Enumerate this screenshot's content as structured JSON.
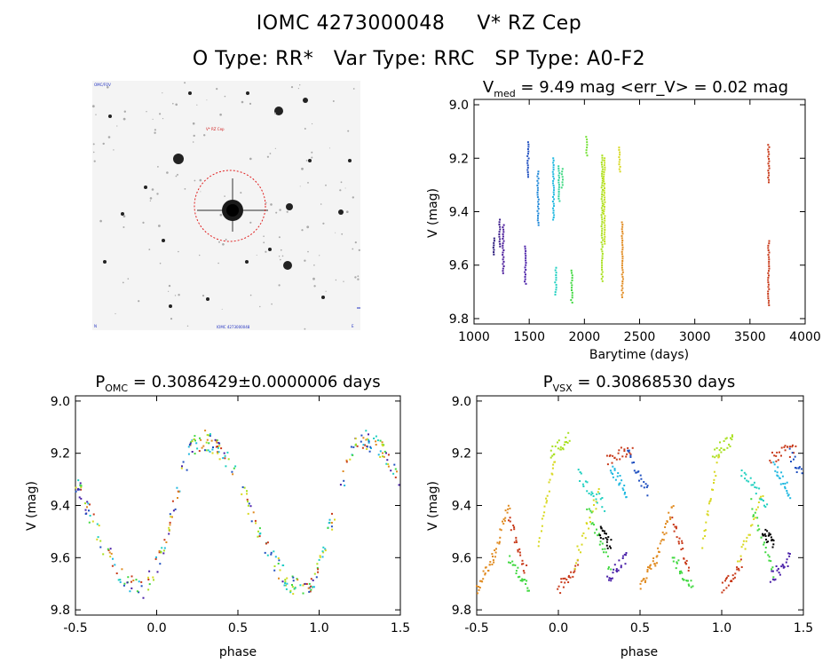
{
  "title_line1": {
    "id": "IOMC 4273000048",
    "name": "V* RZ Cep"
  },
  "title_line2": {
    "otype": "O Type: RR*",
    "vartype": "Var Type: RRC",
    "sptype": "SP Type: A0-F2"
  },
  "sky_image": {
    "label_top_left": "OMC/FOV",
    "label_target": "V* RZ Cep",
    "label_bottom_center": "IOMC 4273000048",
    "label_bottom_left": "N",
    "label_bottom_right": "E",
    "circle_color": "#e02020"
  },
  "chart_data": [
    {
      "type": "scatter",
      "id": "lightcurve",
      "title_main": "V",
      "title_sub": "med",
      "title_rest": " = 9.49 mag <err_V> = 0.02 mag",
      "xlabel": "Barytime (days)",
      "ylabel": "V (mag)",
      "xlim": [
        1000,
        4000
      ],
      "ylim": [
        9.82,
        8.98
      ],
      "y_inverted": true,
      "xticks": [
        1000,
        1500,
        2000,
        2500,
        3000,
        3500,
        4000
      ],
      "yticks": [
        9.0,
        9.2,
        9.4,
        9.6,
        9.8
      ],
      "clusters": [
        {
          "x": 1180,
          "ymin": 9.5,
          "ymax": 9.56,
          "color": "#2a1a7a"
        },
        {
          "x": 1230,
          "ymin": 9.43,
          "ymax": 9.53,
          "color": "#3a1a8a"
        },
        {
          "x": 1265,
          "ymin": 9.45,
          "ymax": 9.63,
          "color": "#4a1a9a"
        },
        {
          "x": 1465,
          "ymin": 9.53,
          "ymax": 9.67,
          "color": "#4a20a8"
        },
        {
          "x": 1490,
          "ymin": 9.14,
          "ymax": 9.27,
          "color": "#2050c0"
        },
        {
          "x": 1580,
          "ymin": 9.25,
          "ymax": 9.45,
          "color": "#2088d8"
        },
        {
          "x": 1720,
          "ymin": 9.2,
          "ymax": 9.43,
          "color": "#20b8e0"
        },
        {
          "x": 1740,
          "ymin": 9.61,
          "ymax": 9.71,
          "color": "#20d0c0"
        },
        {
          "x": 1770,
          "ymin": 9.23,
          "ymax": 9.36,
          "color": "#30d0a0"
        },
        {
          "x": 1800,
          "ymin": 9.24,
          "ymax": 9.31,
          "color": "#40d880"
        },
        {
          "x": 1885,
          "ymin": 9.62,
          "ymax": 9.74,
          "color": "#40d840"
        },
        {
          "x": 2020,
          "ymin": 9.12,
          "ymax": 9.19,
          "color": "#70e030"
        },
        {
          "x": 2160,
          "ymin": 9.19,
          "ymax": 9.66,
          "color": "#a8e020"
        },
        {
          "x": 2180,
          "ymin": 9.2,
          "ymax": 9.52,
          "color": "#c0e020"
        },
        {
          "x": 2320,
          "ymin": 9.16,
          "ymax": 9.25,
          "color": "#d8d820"
        },
        {
          "x": 2345,
          "ymin": 9.44,
          "ymax": 9.72,
          "color": "#e08a20"
        },
        {
          "x": 3670,
          "ymin": 9.15,
          "ymax": 9.29,
          "color": "#c83a1a"
        },
        {
          "x": 3670,
          "ymin": 9.51,
          "ymax": 9.75,
          "color": "#c83a1a"
        }
      ]
    },
    {
      "type": "scatter",
      "id": "phase_omc",
      "title_main": "P",
      "title_sub": "OMC",
      "title_rest": " = 0.3086429±0.0000006 days",
      "xlabel": "phase",
      "ylabel": "V (mag)",
      "xlim": [
        -0.5,
        1.5
      ],
      "ylim": [
        9.82,
        8.98
      ],
      "y_inverted": true,
      "xticks": [
        -0.5,
        0.0,
        0.5,
        1.0,
        1.5
      ],
      "yticks": [
        9.0,
        9.2,
        9.4,
        9.6,
        9.8
      ],
      "tick_labels_x": [
        "-0.5",
        "0.0",
        "0.5",
        "1.0",
        "1.5"
      ],
      "tick_labels_y": [
        "9.0",
        "9.2",
        "9.4",
        "9.6",
        "9.8"
      ],
      "curve": {
        "kind": "rrc",
        "max_phase": 0.28,
        "min_phase": -0.1,
        "bright_mag": 9.15,
        "faint_mag": 9.72,
        "scatter": 0.04,
        "colors": [
          "#c83a1a",
          "#e08a20",
          "#d8d820",
          "#a8e020",
          "#40d840",
          "#20d0c0",
          "#20b8e0",
          "#2050c0",
          "#4a20a8"
        ]
      }
    },
    {
      "type": "scatter",
      "id": "phase_vsx",
      "title_main": "P",
      "title_sub": "VSX",
      "title_rest": " = 0.30868530 days",
      "xlabel": "phase",
      "ylabel": "V (mag)",
      "xlim": [
        -0.5,
        1.5
      ],
      "ylim": [
        9.82,
        8.98
      ],
      "y_inverted": true,
      "xticks": [
        -0.5,
        0.0,
        0.5,
        1.0,
        1.5
      ],
      "yticks": [
        9.0,
        9.2,
        9.4,
        9.6,
        9.8
      ],
      "tick_labels_x": [
        "-0.5",
        "0.0",
        "0.5",
        "1.0",
        "1.5"
      ],
      "tick_labels_y": [
        "9.0",
        "9.2",
        "9.4",
        "9.6",
        "9.8"
      ],
      "curve": {
        "kind": "smeared",
        "segments": [
          {
            "p0": -0.5,
            "p1": -0.4,
            "m0": 9.72,
            "m1": 9.6,
            "color": "#e08a20"
          },
          {
            "p0": -0.4,
            "p1": -0.3,
            "m0": 9.6,
            "m1": 9.4,
            "color": "#e08a20"
          },
          {
            "p0": -0.3,
            "p1": -0.2,
            "m0": 9.45,
            "m1": 9.65,
            "color": "#c83a1a"
          },
          {
            "p0": -0.3,
            "p1": -0.18,
            "m0": 9.6,
            "m1": 9.72,
            "color": "#40d840"
          },
          {
            "p0": -0.12,
            "p1": -0.02,
            "m0": 9.55,
            "m1": 9.22,
            "color": "#d8d820"
          },
          {
            "p0": -0.05,
            "p1": 0.07,
            "m0": 9.2,
            "m1": 9.14,
            "color": "#a8e020"
          },
          {
            "p0": 0.0,
            "p1": 0.12,
            "m0": 9.72,
            "m1": 9.62,
            "color": "#c83a1a"
          },
          {
            "p0": 0.1,
            "p1": 0.25,
            "m0": 9.62,
            "m1": 9.35,
            "color": "#d8d820"
          },
          {
            "p0": 0.12,
            "p1": 0.28,
            "m0": 9.28,
            "m1": 9.4,
            "color": "#20d0c0"
          },
          {
            "p0": 0.18,
            "p1": 0.32,
            "m0": 9.4,
            "m1": 9.65,
            "color": "#40d840"
          },
          {
            "p0": 0.25,
            "p1": 0.32,
            "m0": 9.5,
            "m1": 9.55,
            "color": "#000000"
          },
          {
            "p0": 0.3,
            "p1": 0.42,
            "m0": 9.68,
            "m1": 9.6,
            "color": "#4a20a8"
          },
          {
            "p0": 0.32,
            "p1": 0.42,
            "m0": 9.25,
            "m1": 9.35,
            "color": "#20b8e0"
          },
          {
            "p0": 0.3,
            "p1": 0.45,
            "m0": 9.22,
            "m1": 9.18,
            "color": "#c83a1a"
          },
          {
            "p0": 0.42,
            "p1": 0.55,
            "m0": 9.2,
            "m1": 9.35,
            "color": "#2050c0"
          }
        ],
        "scatter": 0.025
      }
    }
  ]
}
